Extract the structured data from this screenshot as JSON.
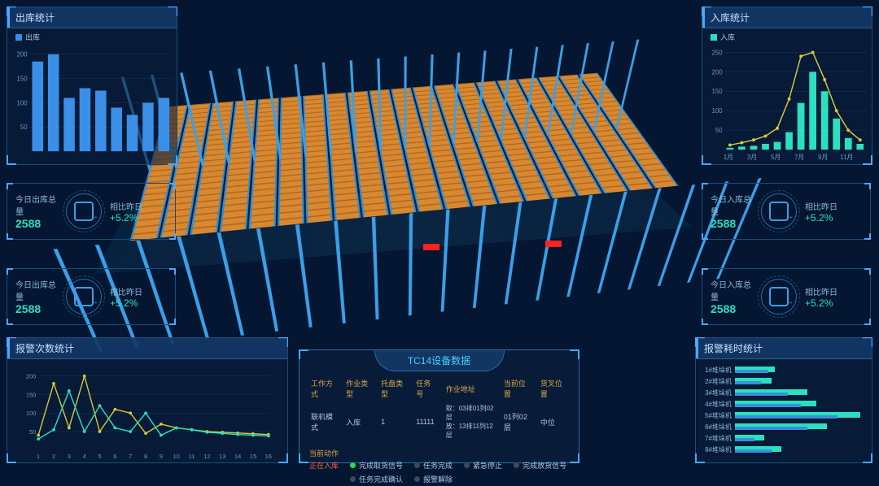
{
  "colors": {
    "bg": "#041631",
    "accent": "#4aa8ff",
    "teal": "#2ae0c0",
    "orange": "#d88830",
    "blue": "#3aa0e8",
    "yellow": "#d8c838",
    "panel_border": "#1a4d7a"
  },
  "left": {
    "outbound": {
      "title": "出库统计",
      "chart": {
        "type": "bar",
        "legend": "出库",
        "y_ticks": [
          50,
          100,
          150,
          200
        ],
        "y_max": 220,
        "bars": [
          185,
          200,
          110,
          130,
          125,
          90,
          75,
          100,
          110
        ],
        "bar_color": "#3a90e8"
      }
    },
    "stats": [
      {
        "label": "今日出库总量",
        "value": "2588",
        "delta_label": "相比昨日",
        "delta": "+5.2%"
      },
      {
        "label": "今日出库总量",
        "value": "2588",
        "delta_label": "相比昨日",
        "delta": "+5.2%"
      }
    ],
    "alarm_count": {
      "title": "报警次数统计",
      "chart": {
        "type": "line",
        "y_ticks": [
          50,
          100,
          150,
          200
        ],
        "y_max": 220,
        "series": [
          {
            "color": "#d8c838",
            "values": [
              40,
              180,
              60,
              200,
              50,
              110,
              100,
              45,
              70,
              60,
              55,
              50,
              48,
              46,
              44,
              42
            ]
          },
          {
            "color": "#2ae0c0",
            "values": [
              30,
              55,
              160,
              50,
              120,
              60,
              50,
              100,
              40,
              60,
              55,
              48,
              45,
              42,
              40,
              38
            ]
          }
        ],
        "x_labels": [
          "1",
          "2",
          "3",
          "4",
          "5",
          "6",
          "7",
          "8",
          "9",
          "10",
          "11",
          "12",
          "13",
          "14",
          "15",
          "16"
        ]
      }
    }
  },
  "right": {
    "inbound": {
      "title": "入库统计",
      "chart": {
        "type": "bar+line",
        "legend": "入库",
        "y_ticks": [
          50,
          100,
          150,
          200,
          250
        ],
        "y_max": 270,
        "x_labels": [
          "1月",
          "3月",
          "5月",
          "7月",
          "9月",
          "11月"
        ],
        "bars": [
          5,
          8,
          10,
          15,
          20,
          45,
          120,
          200,
          150,
          80,
          30,
          15
        ],
        "bar_color": "#2ae0c0",
        "line": {
          "color": "#d8c838",
          "values": [
            12,
            18,
            25,
            35,
            55,
            130,
            240,
            250,
            180,
            100,
            50,
            25
          ]
        }
      }
    },
    "stats": [
      {
        "label": "今日入库总量",
        "value": "2588",
        "delta_label": "相比昨日",
        "delta": "+5.2%"
      },
      {
        "label": "今日入库总量",
        "value": "2588",
        "delta_label": "相比昨日",
        "delta": "+5.2%"
      }
    ],
    "alarm_time": {
      "title": "报警耗时统计",
      "chart": {
        "type": "hbar",
        "rows": [
          {
            "label": "1#堆垛机",
            "v1": 30,
            "v2": 25
          },
          {
            "label": "2#堆垛机",
            "v1": 28,
            "v2": 20
          },
          {
            "label": "3#堆垛机",
            "v1": 55,
            "v2": 40
          },
          {
            "label": "4#堆垛机",
            "v1": 62,
            "v2": 50
          },
          {
            "label": "5#堆垛机",
            "v1": 95,
            "v2": 78
          },
          {
            "label": "6#堆垛机",
            "v1": 70,
            "v2": 55
          },
          {
            "label": "7#堆垛机",
            "v1": 22,
            "v2": 15
          },
          {
            "label": "8#堆垛机",
            "v1": 35,
            "v2": 28
          }
        ],
        "max": 100
      }
    }
  },
  "device": {
    "title": "TC14设备数据",
    "headers": [
      "工作方式",
      "作业类型",
      "托盘类型",
      "任务号",
      "作业地址",
      "当前位置",
      "货叉位置"
    ],
    "row": [
      "联机模式",
      "入库",
      "1",
      "11111",
      "取：03排01列02层\n放：13排11列12层",
      "01列02层",
      "中位"
    ],
    "action_label": "当前动作",
    "action_value": "正在入库",
    "statuses": [
      {
        "label": "完成取货信号",
        "on": true
      },
      {
        "label": "任务完成",
        "on": false
      },
      {
        "label": "紧急停止",
        "on": false
      },
      {
        "label": "完成放货信号",
        "on": false
      },
      {
        "label": "任务完成确认",
        "on": false
      },
      {
        "label": "报警解除",
        "on": false
      }
    ]
  }
}
